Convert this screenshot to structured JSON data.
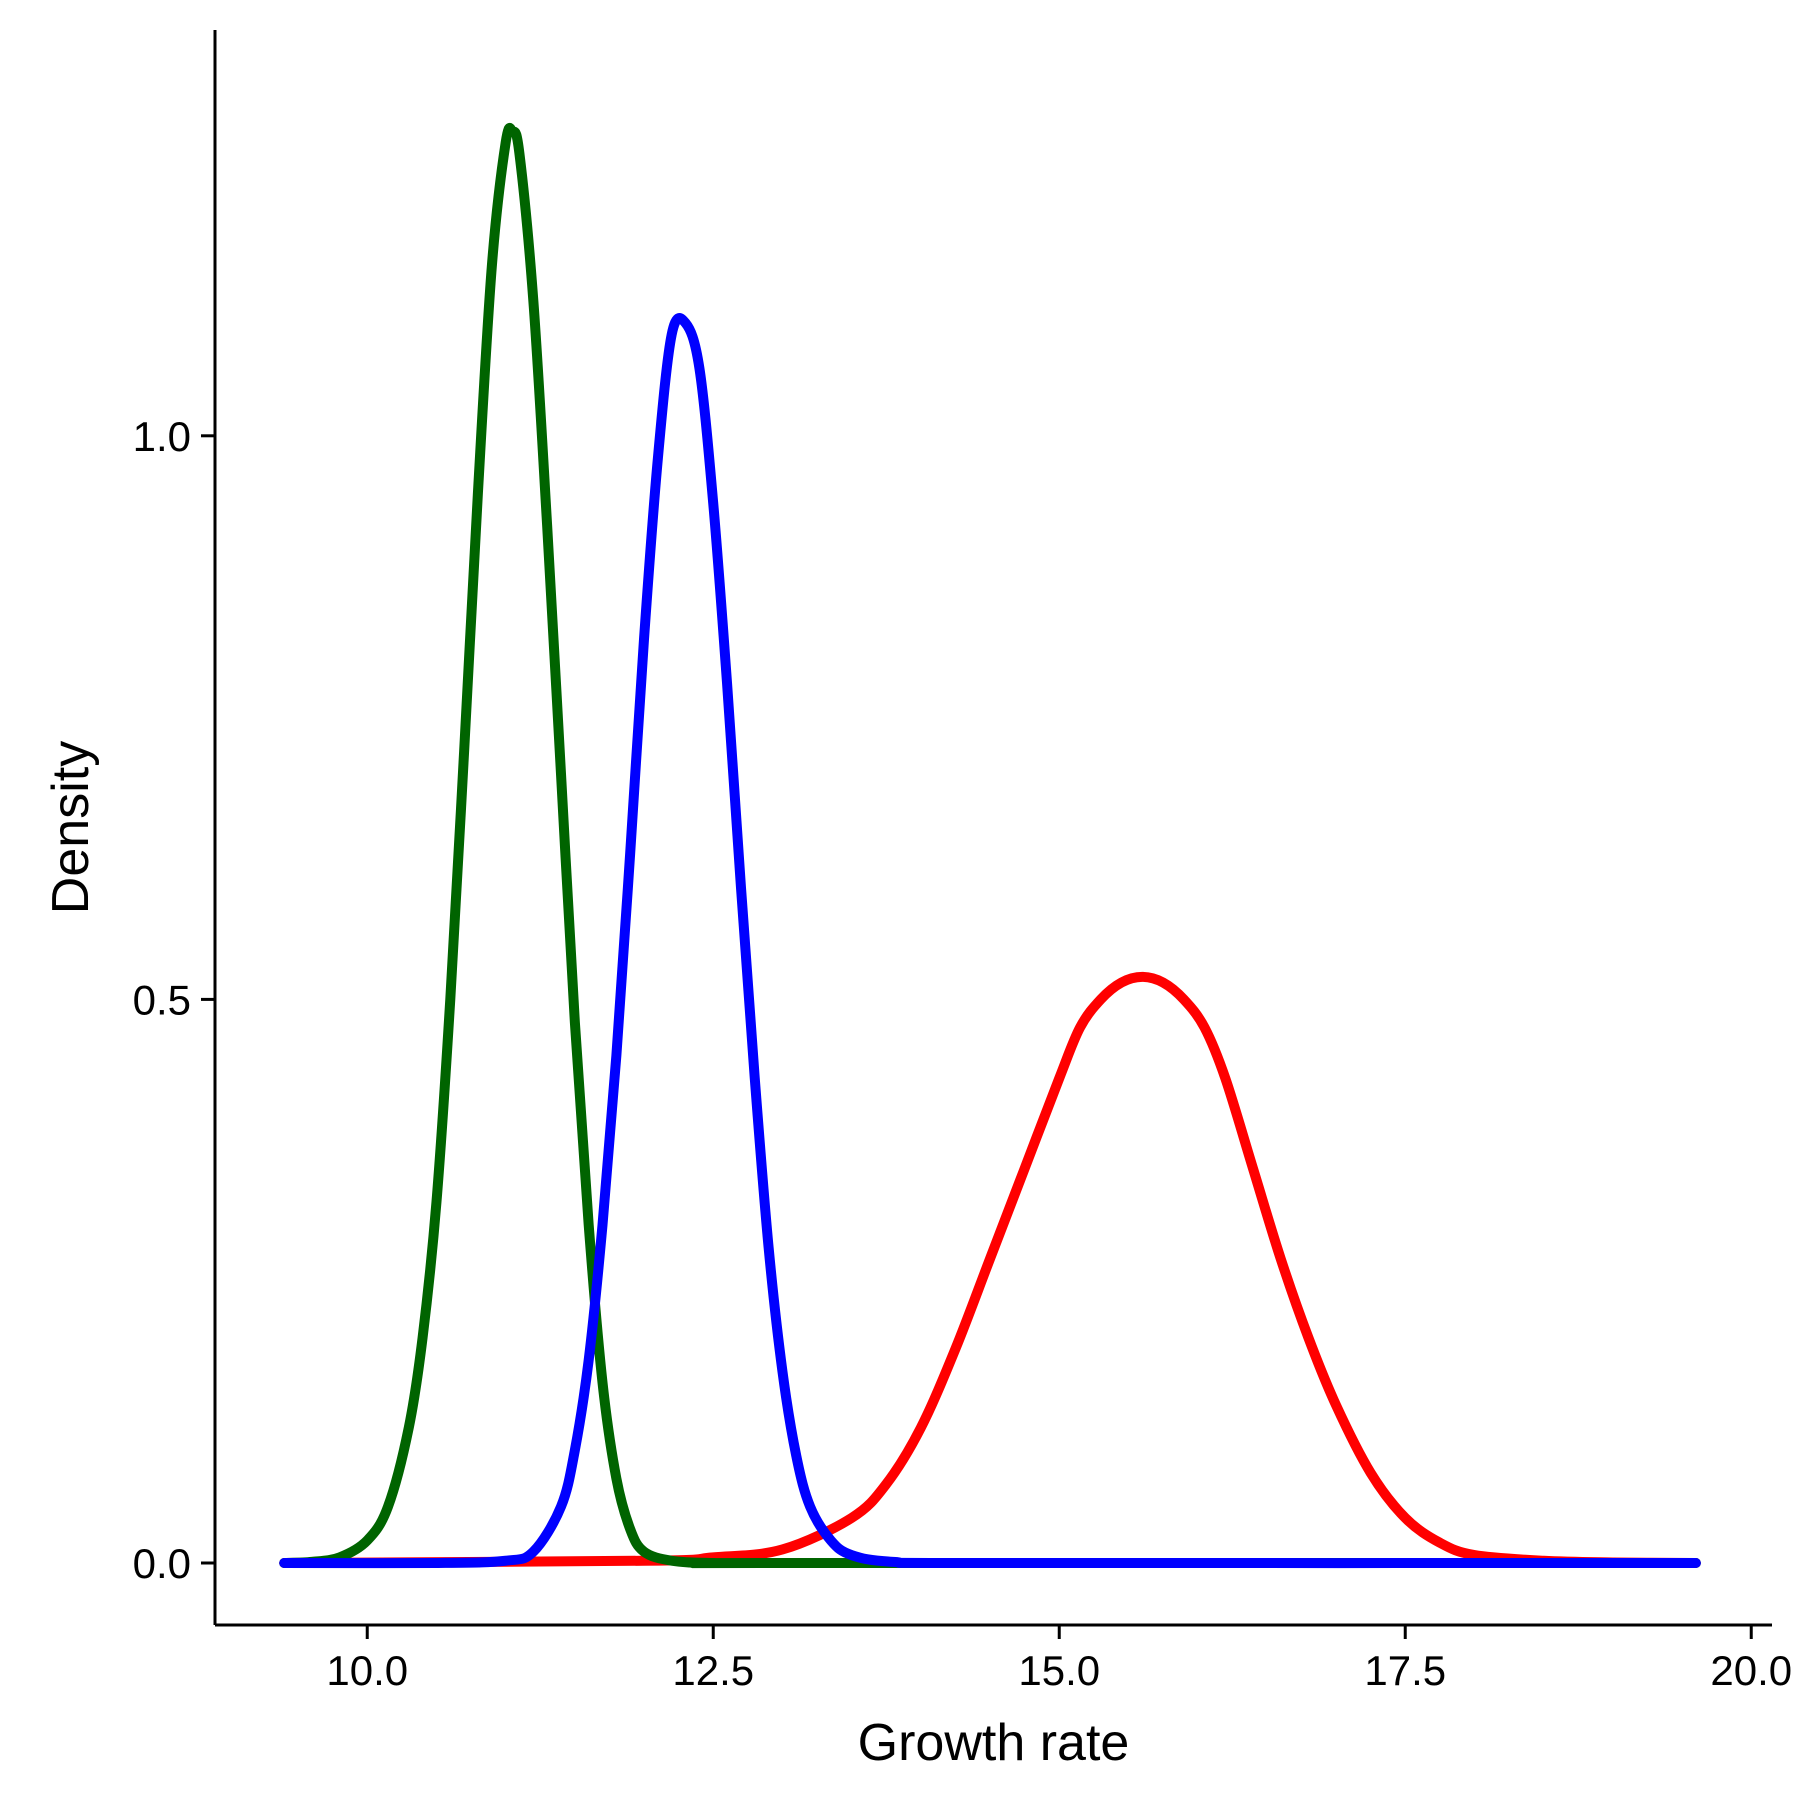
{
  "chart_data": {
    "type": "line",
    "title": "",
    "xlabel": "Growth rate",
    "ylabel": "Density",
    "xlim": [
      8.9,
      20.15
    ],
    "ylim": [
      -0.055,
      1.36
    ],
    "grid": false,
    "legend": "none",
    "x_ticks": [
      {
        "value": 10.0,
        "label": "10.0"
      },
      {
        "value": 12.5,
        "label": "12.5"
      },
      {
        "value": 15.0,
        "label": "15.0"
      },
      {
        "value": 17.5,
        "label": "17.5"
      },
      {
        "value": 20.0,
        "label": "20.0"
      }
    ],
    "y_ticks": [
      {
        "value": 0.0,
        "label": "0.0"
      },
      {
        "value": 0.5,
        "label": "0.5"
      },
      {
        "value": 1.0,
        "label": "1.0"
      }
    ],
    "series": [
      {
        "color": "#ff0000",
        "x": [
          9.4,
          12.0,
          12.5,
          13.0,
          13.5,
          13.75,
          14.0,
          14.25,
          14.5,
          14.75,
          15.0,
          15.15,
          15.3,
          15.45,
          15.6,
          15.75,
          15.9,
          16.05,
          16.2,
          16.4,
          16.6,
          16.8,
          17.0,
          17.25,
          17.5,
          17.75,
          18.0,
          18.5,
          19.0,
          19.6
        ],
        "values": [
          0.0,
          0.002,
          0.005,
          0.012,
          0.04,
          0.07,
          0.12,
          0.19,
          0.27,
          0.35,
          0.43,
          0.475,
          0.5,
          0.515,
          0.52,
          0.515,
          0.5,
          0.475,
          0.43,
          0.35,
          0.27,
          0.2,
          0.14,
          0.08,
          0.04,
          0.018,
          0.007,
          0.002,
          0.0005,
          0.0
        ]
      },
      {
        "color": "#006400",
        "x": [
          9.4,
          9.6,
          9.8,
          10.0,
          10.15,
          10.3,
          10.4,
          10.5,
          10.6,
          10.7,
          10.8,
          10.9,
          11.0,
          11.05,
          11.1,
          11.2,
          11.3,
          11.4,
          11.5,
          11.6,
          11.7,
          11.8,
          11.9,
          12.0,
          12.2,
          12.5,
          13.0,
          19.6
        ],
        "values": [
          0.0,
          0.001,
          0.005,
          0.02,
          0.05,
          0.12,
          0.2,
          0.32,
          0.5,
          0.72,
          0.95,
          1.15,
          1.26,
          1.27,
          1.25,
          1.12,
          0.92,
          0.7,
          0.48,
          0.3,
          0.16,
          0.075,
          0.03,
          0.01,
          0.002,
          0.0,
          0.0,
          0.0
        ]
      },
      {
        "color": "#0000ff",
        "x": [
          9.4,
          10.5,
          11.0,
          11.2,
          11.4,
          11.5,
          11.6,
          11.7,
          11.8,
          11.9,
          12.0,
          12.1,
          12.2,
          12.3,
          12.4,
          12.5,
          12.6,
          12.7,
          12.8,
          12.9,
          13.0,
          13.1,
          13.2,
          13.35,
          13.5,
          13.8,
          14.5,
          19.6
        ],
        "values": [
          0.0,
          0.0,
          0.002,
          0.01,
          0.05,
          0.1,
          0.18,
          0.3,
          0.45,
          0.63,
          0.82,
          0.98,
          1.09,
          1.1,
          1.06,
          0.94,
          0.78,
          0.6,
          0.43,
          0.28,
          0.17,
          0.095,
          0.05,
          0.02,
          0.007,
          0.001,
          0.0,
          0.0
        ]
      }
    ]
  }
}
